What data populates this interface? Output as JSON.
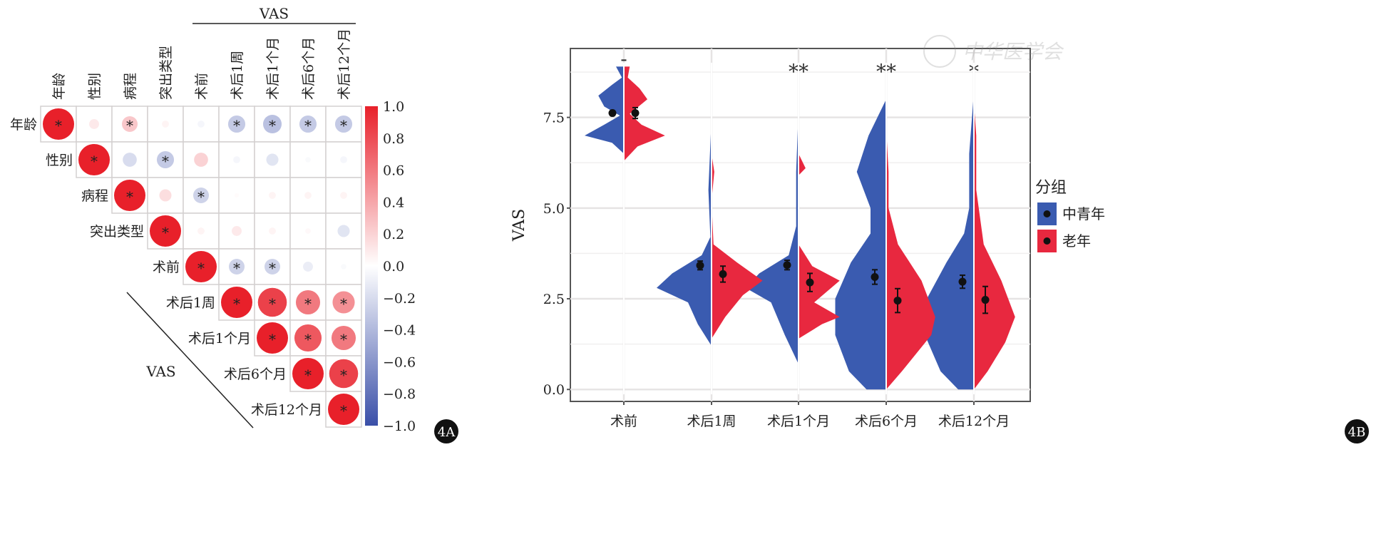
{
  "panels": {
    "a_label": "4A",
    "b_label": "4B"
  },
  "watermark": "中华医学会",
  "chart_data": [
    {
      "type": "heatmap",
      "subtype": "correlation-circle-matrix",
      "variables": [
        "年龄",
        "性别",
        "病程",
        "突出类型",
        "术前",
        "术后1周",
        "术后1个月",
        "术后6个月",
        "术后12个月"
      ],
      "group_label": "VAS",
      "vas_group": [
        "术前",
        "术后1周",
        "术后1个月",
        "术后6个月",
        "术后12个月"
      ],
      "correlations": [
        [
          1,
          0.1,
          0.25,
          0.05,
          -0.05,
          -0.3,
          -0.35,
          -0.3,
          -0.3
        ],
        [
          null,
          1,
          -0.2,
          -0.3,
          0.2,
          -0.05,
          -0.15,
          -0.03,
          -0.05
        ],
        [
          null,
          null,
          1,
          0.15,
          -0.25,
          0.02,
          0.05,
          0.05,
          0.05
        ],
        [
          null,
          null,
          null,
          1,
          0.05,
          0.1,
          0.05,
          0.03,
          -0.15
        ],
        [
          null,
          null,
          null,
          null,
          1,
          -0.25,
          -0.25,
          -0.1,
          -0.03
        ],
        [
          null,
          null,
          null,
          null,
          null,
          1,
          0.85,
          0.6,
          0.5
        ],
        [
          null,
          null,
          null,
          null,
          null,
          null,
          1,
          0.75,
          0.6
        ],
        [
          null,
          null,
          null,
          null,
          null,
          null,
          null,
          1,
          0.85
        ],
        [
          null,
          null,
          null,
          null,
          null,
          null,
          null,
          null,
          1
        ]
      ],
      "significant": [
        [
          1,
          0,
          1,
          0,
          0,
          1,
          1,
          1,
          1
        ],
        [
          0,
          1,
          0,
          1,
          0,
          0,
          0,
          0,
          0
        ],
        [
          0,
          0,
          1,
          0,
          1,
          0,
          0,
          0,
          0
        ],
        [
          0,
          0,
          0,
          1,
          0,
          0,
          0,
          0,
          0
        ],
        [
          0,
          0,
          0,
          0,
          1,
          1,
          1,
          0,
          0
        ],
        [
          0,
          0,
          0,
          0,
          0,
          1,
          1,
          1,
          1
        ],
        [
          0,
          0,
          0,
          0,
          0,
          0,
          1,
          1,
          1
        ],
        [
          0,
          0,
          0,
          0,
          0,
          0,
          0,
          1,
          1
        ],
        [
          0,
          0,
          0,
          0,
          0,
          0,
          0,
          0,
          1
        ]
      ],
      "sig_mark": "*",
      "colorbar": {
        "range": [
          -1,
          1
        ],
        "ticks": [
          "1.0",
          "0.8",
          "0.6",
          "0.4",
          "0.2",
          "0.0",
          "−0.2",
          "−0.4",
          "−0.6",
          "−0.8",
          "−1.0"
        ],
        "low_color": "#3a4fa8",
        "mid_color": "#ffffff",
        "high_color": "#e8202a"
      }
    },
    {
      "type": "violin",
      "subtype": "split-violin",
      "ylabel": "VAS",
      "xlabel": "",
      "ylim": [
        -0.33,
        9.4
      ],
      "yticks": [
        "0.0",
        "2.5",
        "5.0",
        "7.5"
      ],
      "ytick_values": [
        0,
        2.5,
        5,
        7.5
      ],
      "categories": [
        "术前",
        "术后1周",
        "术后1个月",
        "术后6个月",
        "术后12个月"
      ],
      "significance": [
        "-",
        "",
        "**",
        "**",
        "*"
      ],
      "legend": {
        "title": "分组",
        "position": "right"
      },
      "series": [
        {
          "name": "中青年",
          "color": "#3a5bb0",
          "means": [
            7.62,
            3.42,
            3.43,
            3.1,
            2.97
          ],
          "errors": [
            0.06,
            0.12,
            0.13,
            0.2,
            0.18
          ],
          "density": [
            [
              [
                6.5,
                0
              ],
              [
                6.8,
                0.3
              ],
              [
                7.0,
                1
              ],
              [
                7.3,
                0.5
              ],
              [
                7.55,
                0.1
              ],
              [
                7.8,
                0.5
              ],
              [
                8.1,
                0.65
              ],
              [
                8.4,
                0.3
              ],
              [
                8.6,
                0.05
              ],
              [
                8.9,
                0.2
              ]
            ],
            [
              [
                1.2,
                0
              ],
              [
                1.8,
                0.35
              ],
              [
                2.4,
                0.6
              ],
              [
                2.8,
                1.4
              ],
              [
                3.2,
                1.0
              ],
              [
                3.7,
                0.25
              ],
              [
                4.2,
                0.03
              ],
              [
                5.5,
                0.08
              ],
              [
                7.5,
                0
              ]
            ],
            [
              [
                0.7,
                0
              ],
              [
                1.5,
                0.35
              ],
              [
                2.4,
                0.7
              ],
              [
                2.8,
                1.35
              ],
              [
                3.2,
                1.0
              ],
              [
                3.7,
                0.25
              ],
              [
                4.5,
                0.06
              ],
              [
                6.0,
                0.06
              ],
              [
                7.7,
                0
              ]
            ],
            [
              [
                0,
                0.5
              ],
              [
                0.5,
                0.95
              ],
              [
                1.5,
                1.3
              ],
              [
                2.5,
                1.3
              ],
              [
                3.5,
                0.9
              ],
              [
                4.3,
                0.4
              ],
              [
                5.0,
                0.4
              ],
              [
                6.0,
                0.75
              ],
              [
                7.0,
                0.45
              ],
              [
                8.0,
                0
              ]
            ],
            [
              [
                0,
                0.4
              ],
              [
                0.5,
                0.85
              ],
              [
                1.5,
                1.25
              ],
              [
                2.5,
                1.2
              ],
              [
                3.5,
                0.7
              ],
              [
                4.3,
                0.25
              ],
              [
                5.0,
                0.12
              ],
              [
                6.5,
                0.12
              ],
              [
                8.2,
                0
              ]
            ]
          ]
        },
        {
          "name": "老年",
          "color": "#e8283f",
          "means": [
            7.62,
            3.18,
            2.95,
            2.45,
            2.47
          ],
          "errors": [
            0.15,
            0.22,
            0.25,
            0.33,
            0.37
          ],
          "density": [
            [
              [
                6.3,
                0
              ],
              [
                6.7,
                0.35
              ],
              [
                7.0,
                1.05
              ],
              [
                7.3,
                0.45
              ],
              [
                7.6,
                0.15
              ],
              [
                8.0,
                0.6
              ],
              [
                8.3,
                0.4
              ],
              [
                8.6,
                0.1
              ],
              [
                8.9,
                0.15
              ]
            ],
            [
              [
                1.4,
                0
              ],
              [
                2.0,
                0.35
              ],
              [
                2.6,
                0.8
              ],
              [
                3.0,
                1.3
              ],
              [
                3.5,
                0.65
              ],
              [
                4.0,
                0.05
              ],
              [
                5.2,
                0
              ],
              [
                6.0,
                0.07
              ],
              [
                6.5,
                0
              ]
            ],
            [
              [
                1.4,
                0
              ],
              [
                1.8,
                0.6
              ],
              [
                2.0,
                1.05
              ],
              [
                2.4,
                0.4
              ],
              [
                3.0,
                1.05
              ],
              [
                3.4,
                0.35
              ],
              [
                4.0,
                0
              ],
              [
                5.9,
                0
              ],
              [
                6.1,
                0.18
              ],
              [
                6.5,
                0
              ]
            ],
            [
              [
                0,
                0
              ],
              [
                0.5,
                0.4
              ],
              [
                1.5,
                1.15
              ],
              [
                2.0,
                1.25
              ],
              [
                3.0,
                0.9
              ],
              [
                4.0,
                0.3
              ],
              [
                5.0,
                0.06
              ],
              [
                6.0,
                0.06
              ],
              [
                7.2,
                0
              ]
            ],
            [
              [
                0,
                0
              ],
              [
                0.5,
                0.35
              ],
              [
                1.3,
                0.8
              ],
              [
                2.0,
                1.05
              ],
              [
                3.0,
                0.7
              ],
              [
                4.0,
                0.25
              ],
              [
                5.5,
                0.06
              ],
              [
                7.0,
                0.06
              ],
              [
                7.9,
                0
              ]
            ]
          ]
        }
      ]
    }
  ]
}
